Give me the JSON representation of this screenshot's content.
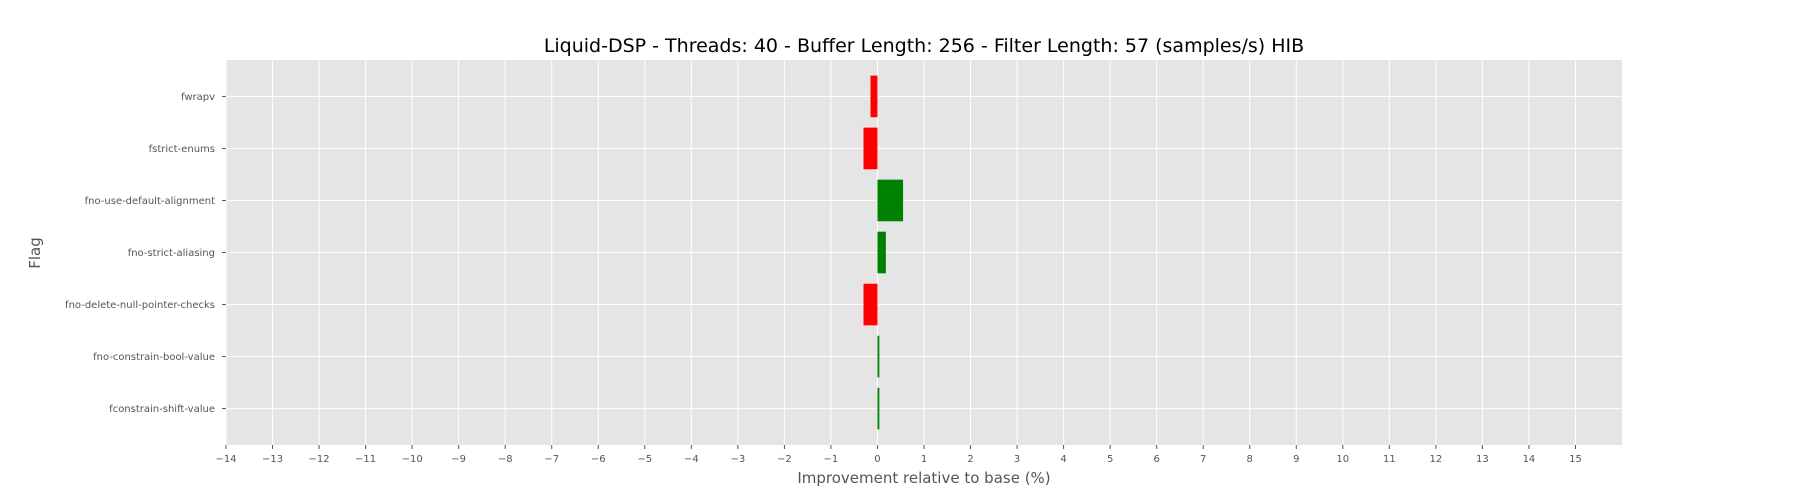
{
  "chart_data": {
    "type": "bar",
    "orientation": "horizontal",
    "title": "Liquid-DSP - Threads: 40 - Buffer Length: 256 - Filter Length: 57 (samples/s) HIB",
    "xlabel": "Improvement relative to base (%)",
    "ylabel": "Flag",
    "categories": [
      "fwrapv",
      "fstrict-enums",
      "fno-use-default-alignment",
      "fno-strict-aliasing",
      "fno-delete-null-pointer-checks",
      "fno-constrain-bool-value",
      "fconstrain-shift-value"
    ],
    "values": [
      -0.15,
      -0.3,
      0.55,
      0.18,
      -0.3,
      0.04,
      0.04
    ],
    "xlim": [
      -14,
      16
    ],
    "xticks": [
      -14,
      -13,
      -12,
      -11,
      -10,
      -9,
      -8,
      -7,
      -6,
      -5,
      -4,
      -3,
      -2,
      -1,
      0,
      1,
      2,
      3,
      4,
      5,
      6,
      7,
      8,
      9,
      10,
      11,
      12,
      13,
      14,
      15
    ],
    "grid": true,
    "colors": {
      "positive": "#008000",
      "negative": "#ff0000",
      "background": "#e5e5e5",
      "grid": "#ffffff"
    }
  }
}
